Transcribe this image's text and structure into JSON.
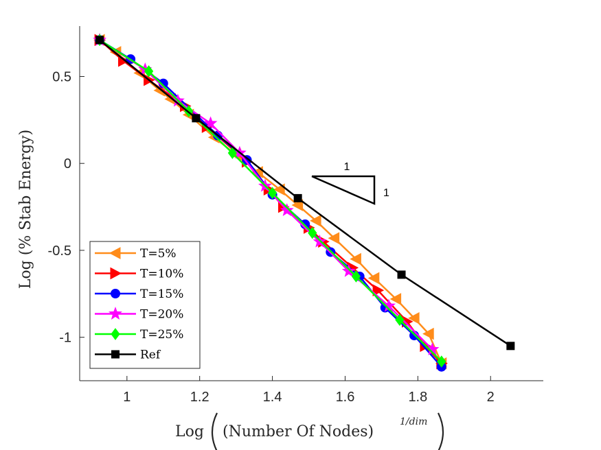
{
  "chart_data": {
    "type": "line",
    "title": "",
    "xlabel": "Log ((Number Of Nodes)^{1/dim})",
    "xlabel_parts": {
      "prefix": "Log",
      "inner": "(Number Of Nodes)",
      "exponent": "1/dim"
    },
    "ylabel": "Log (% Stab Energy)",
    "xlim": [
      0.87,
      2.145
    ],
    "ylim": [
      -1.25,
      0.79
    ],
    "xticks": [
      1,
      1.2,
      1.4,
      1.6,
      1.8,
      2
    ],
    "xtick_labels": [
      "1",
      "1.2",
      "1.4",
      "1.6",
      "1.8",
      "2"
    ],
    "yticks": [
      0.5,
      0,
      -0.5,
      -1
    ],
    "ytick_labels": [
      "0.5",
      "0",
      "-0.5",
      "-1"
    ],
    "grid": false,
    "legend_position": "bottom-left",
    "series": [
      {
        "name": "T=5%",
        "color": "#ff8c1a",
        "marker": "triangle-left",
        "x": [
          0.925,
          0.97,
          1.035,
          1.09,
          1.12,
          1.17,
          1.24,
          1.3,
          1.36,
          1.42,
          1.47,
          1.52,
          1.57,
          1.63,
          1.68,
          1.74,
          1.79,
          1.83,
          1.865
        ],
        "y": [
          0.71,
          0.64,
          0.52,
          0.42,
          0.37,
          0.28,
          0.15,
          0.05,
          -0.05,
          -0.15,
          -0.24,
          -0.33,
          -0.43,
          -0.55,
          -0.66,
          -0.78,
          -0.89,
          -0.98,
          -1.15
        ]
      },
      {
        "name": "T=10%",
        "color": "#ff0000",
        "marker": "triangle-right",
        "x": [
          0.925,
          0.99,
          1.06,
          1.16,
          1.22,
          1.33,
          1.39,
          1.43,
          1.5,
          1.54,
          1.62,
          1.69,
          1.77,
          1.82,
          1.865
        ],
        "y": [
          0.71,
          0.59,
          0.48,
          0.33,
          0.21,
          0.01,
          -0.15,
          -0.25,
          -0.37,
          -0.45,
          -0.6,
          -0.73,
          -0.91,
          -1.05,
          -1.15
        ]
      },
      {
        "name": "T=15%",
        "color": "#0000ff",
        "marker": "circle",
        "x": [
          0.925,
          1.01,
          1.1,
          1.25,
          1.33,
          1.4,
          1.49,
          1.56,
          1.64,
          1.71,
          1.79,
          1.865
        ],
        "y": [
          0.71,
          0.6,
          0.46,
          0.16,
          0.02,
          -0.18,
          -0.35,
          -0.51,
          -0.65,
          -0.83,
          -0.99,
          -1.17
        ]
      },
      {
        "name": "T=20%",
        "color": "#ff00ff",
        "marker": "star",
        "x": [
          0.925,
          1.05,
          1.14,
          1.23,
          1.31,
          1.38,
          1.44,
          1.53,
          1.61,
          1.72,
          1.84
        ],
        "y": [
          0.71,
          0.54,
          0.36,
          0.23,
          0.06,
          -0.13,
          -0.27,
          -0.45,
          -0.62,
          -0.82,
          -1.07
        ]
      },
      {
        "name": "T=25%",
        "color": "#00ff00",
        "marker": "diamond",
        "x": [
          0.925,
          1.06,
          1.17,
          1.29,
          1.4,
          1.51,
          1.63,
          1.75,
          1.865
        ],
        "y": [
          0.71,
          0.53,
          0.3,
          0.06,
          -0.17,
          -0.4,
          -0.65,
          -0.9,
          -1.14
        ]
      },
      {
        "name": "Ref",
        "color": "#000000",
        "marker": "square",
        "x": [
          0.925,
          1.19,
          1.47,
          1.755,
          2.055
        ],
        "y": [
          0.71,
          0.26,
          -0.2,
          -0.64,
          -1.05
        ]
      }
    ],
    "annotations": {
      "slope_triangle": {
        "run_label": "1",
        "rise_label": "1"
      }
    }
  }
}
